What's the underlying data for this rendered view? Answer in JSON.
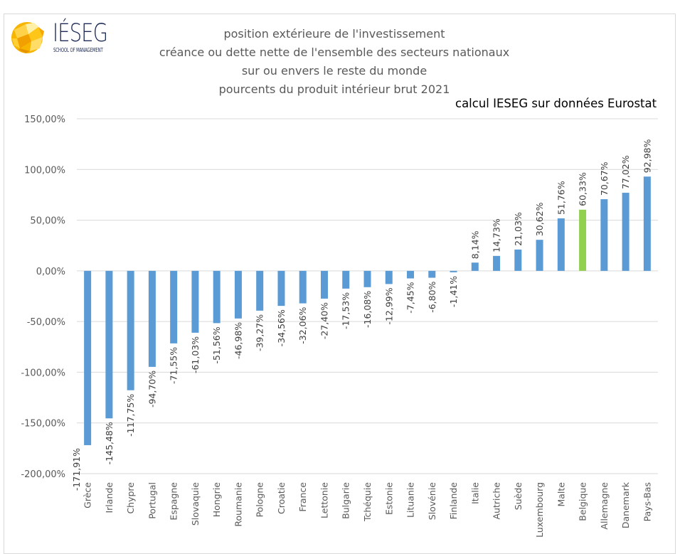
{
  "logo": {
    "name": "IÉSEG",
    "subtitle": "SCHOOL OF MANAGEMENT"
  },
  "title_lines": [
    "position extérieure de l'investissement",
    "créance ou dette nette de l'ensemble des secteurs nationaux",
    "sur ou envers le reste du monde",
    "pourcents du produit intérieur brut 2021"
  ],
  "source_note": "calcul IESEG sur données Eurostat",
  "colors": {
    "bar": "#5b9bd5",
    "highlight": "#92d050",
    "grid": "#d9d9d9",
    "axis_text": "#595959"
  },
  "chart_data": {
    "type": "bar",
    "title": "position extérieure de l'investissement — créance ou dette nette de l'ensemble des secteurs nationaux sur ou envers le reste du monde — pourcents du produit intérieur brut 2021",
    "xlabel": "",
    "ylabel": "",
    "ylim": [
      -200,
      150
    ],
    "yticks": [
      150,
      100,
      50,
      0,
      -50,
      -100,
      -150,
      -200
    ],
    "ytick_labels": [
      "150,00%",
      "100,00%",
      "50,00%",
      "0,00%",
      "-50,00%",
      "-100,00%",
      "-150,00%",
      "-200,00%"
    ],
    "grid": true,
    "legend": "none",
    "highlighted_category": "Belgique",
    "categories": [
      "Grèce",
      "Irlande",
      "Chypre",
      "Portugal",
      "Espagne",
      "Slovaquie",
      "Hongrie",
      "Roumanie",
      "Pologne",
      "Croatie",
      "France",
      "Lettonie",
      "Bulgarie",
      "Tchéquie",
      "Estonie",
      "Lituanie",
      "Slovénie",
      "Finlande",
      "Italie",
      "Autriche",
      "Suède",
      "Luxembourg",
      "Malte",
      "Belgique",
      "Allemagne",
      "Danemark",
      "Pays-Bas"
    ],
    "values": [
      -171.91,
      -145.48,
      -117.75,
      -94.7,
      -71.55,
      -61.03,
      -51.56,
      -46.98,
      -39.27,
      -34.56,
      -32.06,
      -27.4,
      -17.53,
      -16.08,
      -12.99,
      -7.45,
      -6.8,
      -1.41,
      8.14,
      14.73,
      21.03,
      30.62,
      51.76,
      60.33,
      70.67,
      77.02,
      92.98
    ],
    "data_labels": [
      "-171,91%",
      "-145,48%",
      "-117,75%",
      "-94,70%",
      "-71,55%",
      "-61,03%",
      "-51,56%",
      "-46,98%",
      "-39,27%",
      "-34,56%",
      "-32,06%",
      "-27,40%",
      "-17,53%",
      "-16,08%",
      "-12,99%",
      "-7,45%",
      "-6,80%",
      "-1,41%",
      "8,14%",
      "14,73%",
      "21,03%",
      "30,62%",
      "51,76%",
      "60,33%",
      "70,67%",
      "77,02%",
      "92,98%"
    ]
  }
}
